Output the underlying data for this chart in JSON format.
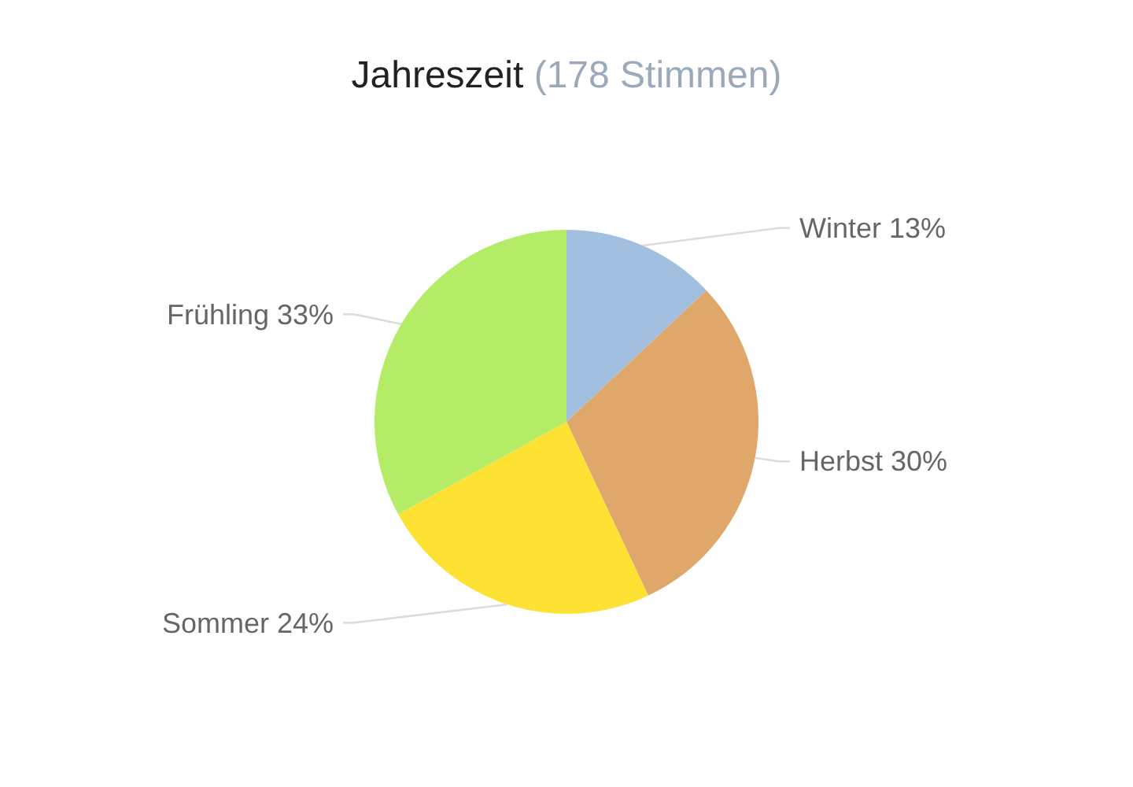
{
  "chart_data": {
    "type": "pie",
    "title": "Jahreszeit",
    "subtitle": "(178 Stimmen)",
    "categories": [
      "Winter",
      "Herbst",
      "Sommer",
      "Frühling"
    ],
    "values": [
      13,
      30,
      24,
      33
    ],
    "colors": [
      "#a3bfdf",
      "#dfa76a",
      "#fde234",
      "#b5ec67"
    ],
    "value_labels": [
      "13%",
      "30%",
      "24%",
      "33%"
    ]
  }
}
